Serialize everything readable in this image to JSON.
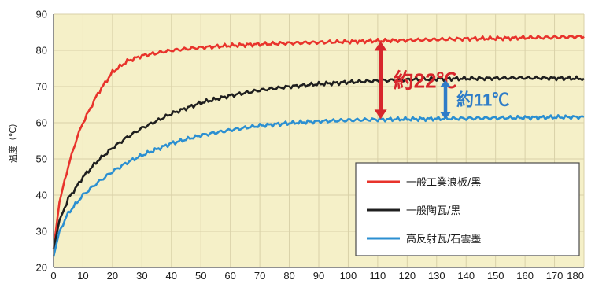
{
  "chart_data": {
    "type": "line",
    "ylabel": "温度（℃）",
    "xlim": [
      0,
      180
    ],
    "ylim": [
      20,
      90
    ],
    "xticks": [
      0,
      10,
      20,
      30,
      40,
      50,
      60,
      70,
      80,
      90,
      100,
      110,
      120,
      130,
      140,
      150,
      160,
      170,
      180
    ],
    "yticks": [
      20,
      30,
      40,
      50,
      60,
      70,
      80,
      90
    ],
    "grid": true,
    "legend_position": "bottom-right",
    "plot_background": "#f5f0c8",
    "series": [
      {
        "name": "一般工業浪板/黑",
        "color": "#e8332b",
        "x": [
          0,
          2,
          5,
          8,
          10,
          15,
          20,
          25,
          30,
          40,
          50,
          60,
          70,
          80,
          90,
          100,
          110,
          120,
          130,
          140,
          150,
          160,
          170,
          180
        ],
        "y": [
          25,
          38,
          48,
          56,
          60,
          68,
          74,
          77,
          78.5,
          80,
          80.8,
          81.3,
          81.7,
          82,
          82.2,
          82.4,
          82.6,
          82.8,
          83,
          83.2,
          83.3,
          83.5,
          83.6,
          83.8
        ]
      },
      {
        "name": "一般陶瓦/黑",
        "color": "#1f1f1f",
        "x": [
          0,
          2,
          5,
          8,
          10,
          15,
          20,
          25,
          30,
          40,
          50,
          60,
          70,
          80,
          90,
          100,
          110,
          120,
          130,
          140,
          150,
          160,
          170,
          180
        ],
        "y": [
          25,
          33,
          39,
          42.5,
          45,
          49.5,
          53,
          56,
          58.5,
          62.5,
          65.5,
          67.5,
          69,
          70,
          70.7,
          71.2,
          71.6,
          71.9,
          72.1,
          72.2,
          72.3,
          72.4,
          72.3,
          72.2
        ]
      },
      {
        "name": "高反射瓦/石雲墨",
        "color": "#2b8fd1",
        "x": [
          0,
          2,
          5,
          8,
          10,
          15,
          20,
          25,
          30,
          40,
          50,
          60,
          70,
          80,
          90,
          100,
          110,
          120,
          130,
          140,
          150,
          160,
          170,
          180
        ],
        "y": [
          23,
          30,
          35,
          38,
          40,
          43.5,
          46.5,
          49,
          51,
          54.3,
          56.5,
          58,
          59.2,
          59.9,
          60.4,
          60.7,
          60.9,
          61,
          61.1,
          61.2,
          61.3,
          61.4,
          61.5,
          61.6
        ]
      }
    ],
    "annotations": [
      {
        "text": "約22℃",
        "from_y": 61,
        "to_y": 82.5,
        "x": 111,
        "color": "#d7262c"
      },
      {
        "text": "約11℃",
        "from_y": 61,
        "to_y": 71.8,
        "x": 133,
        "color": "#2e7cc8"
      }
    ]
  }
}
